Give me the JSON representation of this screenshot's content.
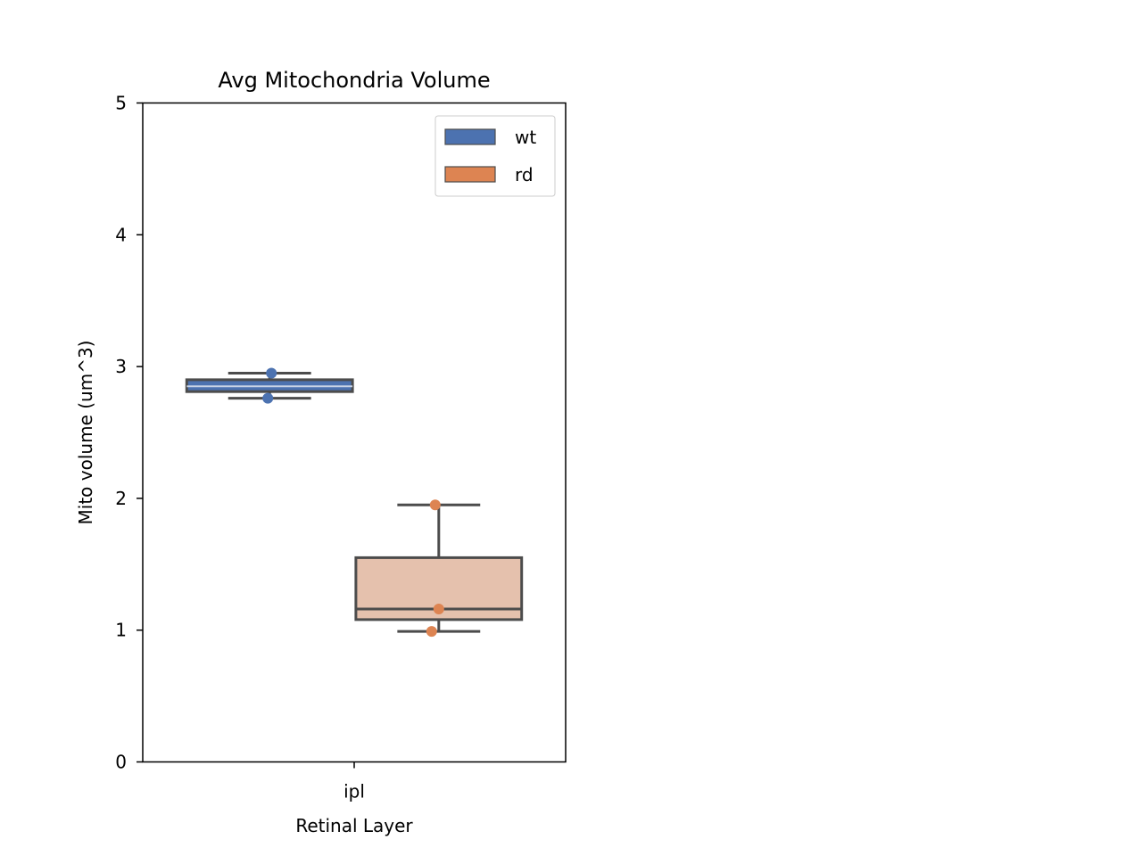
{
  "chart_data": {
    "type": "box",
    "title": "Avg Mitochondria Volume",
    "xlabel": "Retinal Layer",
    "ylabel": "Mito volume (um^3)",
    "categories": [
      "ipl"
    ],
    "ylim": [
      0,
      5
    ],
    "yticks": [
      "0",
      "1",
      "2",
      "3",
      "4",
      "5"
    ],
    "legend": {
      "placement": "top-right"
    },
    "grid": false,
    "series": [
      {
        "name": "wt",
        "color": "#4c72b0",
        "box_fill": "#4c72b0",
        "points": [
          2.95,
          2.76
        ],
        "box": {
          "whisker_low": 2.76,
          "q1": 2.81,
          "median": 2.85,
          "q3": 2.9,
          "whisker_high": 2.95
        }
      },
      {
        "name": "rd",
        "color": "#dd8452",
        "box_fill": "#e5c1ad",
        "points": [
          1.95,
          1.16,
          0.99
        ],
        "box": {
          "whisker_low": 0.99,
          "q1": 1.08,
          "median": 1.16,
          "q3": 1.55,
          "whisker_high": 1.95
        }
      }
    ]
  }
}
